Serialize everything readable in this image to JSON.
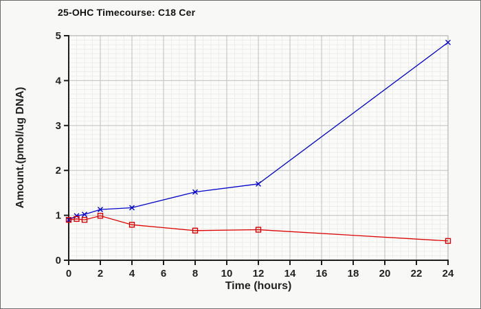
{
  "chart_data": {
    "type": "line",
    "title": "25-OHC Timecourse: C18 Cer",
    "xlabel": "Time (hours)",
    "ylabel": "Amount.(pmol/ug DNA)",
    "xlim": [
      0,
      24
    ],
    "ylim": [
      0,
      5
    ],
    "x_ticks": [
      0,
      2,
      4,
      6,
      8,
      10,
      12,
      14,
      16,
      18,
      20,
      22,
      24
    ],
    "y_ticks": [
      0,
      1,
      2,
      3,
      4,
      5
    ],
    "x": [
      0,
      0.5,
      1,
      2,
      4,
      8,
      12,
      24
    ],
    "series": [
      {
        "id": "blue-x-series",
        "marker": "x",
        "color": "#0000CC",
        "values": [
          0.9,
          0.99,
          1.02,
          1.13,
          1.17,
          1.52,
          1.7,
          4.85
        ]
      },
      {
        "id": "red-square-series",
        "marker": "square",
        "color": "#DD0000",
        "values": [
          0.9,
          0.92,
          0.9,
          0.99,
          0.79,
          0.66,
          0.68,
          0.43
        ]
      }
    ],
    "grid": {
      "minor_x_step": 0.5,
      "minor_y_step": 0.1,
      "major_x_step": 2,
      "major_y_step": 1,
      "grid_on": true
    },
    "legend_position": "none",
    "colors": {
      "minor_grid": "#ececea",
      "major_grid": "#c9c9c9",
      "frame": "#b5b5b5",
      "axis": "#1c1c1c",
      "plot_background": "#fbfbf9"
    }
  }
}
